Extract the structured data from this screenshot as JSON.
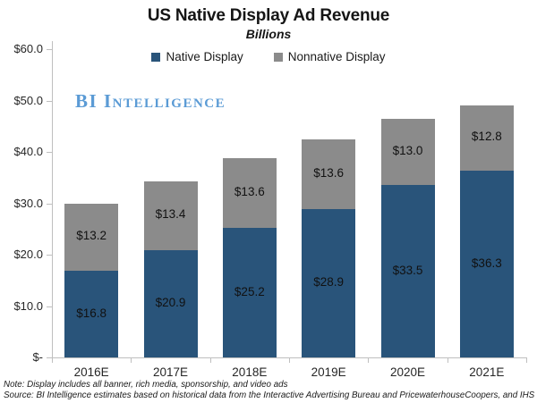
{
  "title": "US Native Display Ad Revenue",
  "subtitle": "Billions",
  "watermark": "BI Intelligence",
  "legend": {
    "items": [
      {
        "label": "Native Display",
        "color": "#29547A"
      },
      {
        "label": "Nonnative Display",
        "color": "#8B8B8B"
      }
    ]
  },
  "chart_data": {
    "type": "bar",
    "variant": "stacked",
    "title": "US Native Display Ad Revenue",
    "subtitle": "Billions",
    "categories": [
      "2016E",
      "2017E",
      "2018E",
      "2019E",
      "2020E",
      "2021E"
    ],
    "series": [
      {
        "name": "Native Display",
        "color": "#29547A",
        "values": [
          16.8,
          20.9,
          25.2,
          28.9,
          33.5,
          36.3
        ]
      },
      {
        "name": "Nonnative Display",
        "color": "#8B8B8B",
        "values": [
          13.2,
          13.4,
          13.6,
          13.6,
          13.0,
          12.8
        ]
      }
    ],
    "totals": [
      30.0,
      34.3,
      38.8,
      42.5,
      46.5,
      49.1
    ],
    "value_label_prefix": "$",
    "value_label_decimals": 1,
    "y_ticks": [
      {
        "value": 60,
        "label": "$60.0"
      },
      {
        "value": 50,
        "label": "$50.0"
      },
      {
        "value": 40,
        "label": "$40.0"
      },
      {
        "value": 30,
        "label": "$30.0"
      },
      {
        "value": 20,
        "label": "$20.0"
      },
      {
        "value": 10,
        "label": "$10.0"
      },
      {
        "value": 0,
        "label": "$-"
      }
    ],
    "ylim": [
      0,
      60
    ],
    "grid": false,
    "legend_position": "top-center",
    "xlabel": "",
    "ylabel": ""
  },
  "notes": {
    "note": "Note: Display includes all banner, rich media, sponsorship, and video ads",
    "source": "Source: BI Intelligence estimates based on historical data from the Interactive Advertising Bureau and PricewaterhouseCoopers, and IHS"
  },
  "colors": {
    "axis": "#BFBFBF",
    "watermark": "#5B9BD5",
    "text": "#1A1A1A"
  }
}
